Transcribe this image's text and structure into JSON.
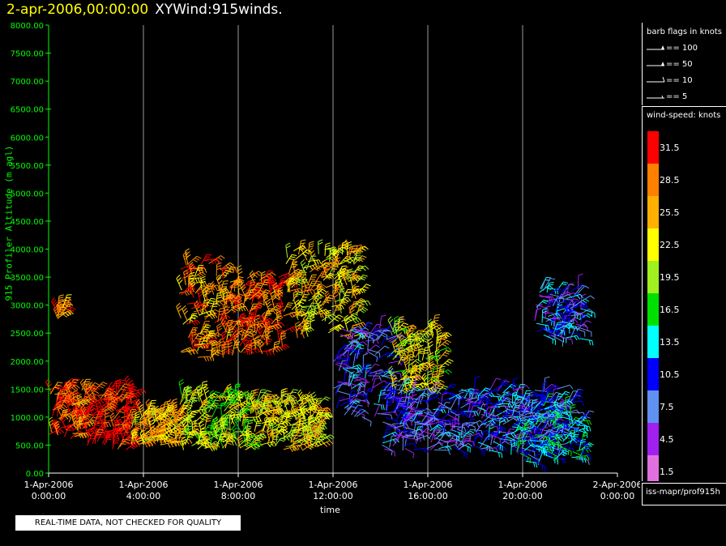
{
  "header": {
    "date": "2-apr-2006,00:00:00",
    "name": "XYWind:915winds."
  },
  "notice": "REAL-TIME DATA, NOT CHECKED FOR QUALITY",
  "legend_barbs": {
    "title": "barb flags in knots",
    "items": [
      {
        "label": "== 100",
        "kind": "flag"
      },
      {
        "label": "== 50",
        "kind": "flag"
      },
      {
        "label": "== 10",
        "kind": "full"
      },
      {
        "label": "== 5",
        "kind": "half"
      }
    ]
  },
  "legend_speed": {
    "title": "wind-speed: knots",
    "colors": [
      "#ff0000",
      "#ff8000",
      "#ffb000",
      "#ffff00",
      "#a0f020",
      "#00e000",
      "#00ffff",
      "#0000ff",
      "#6090f0",
      "#a020f0",
      "#e070e0"
    ],
    "labels": [
      "31.5",
      "28.5",
      "25.5",
      "22.5",
      "19.5",
      "16.5",
      "13.5",
      "10.5",
      "7.5",
      "4.5",
      "1.5"
    ]
  },
  "source": "iss-mapr/prof915h",
  "chart_data": {
    "type": "scatter",
    "title": "XYWind:915winds.",
    "xlabel": "time",
    "ylabel": "915 Profiler Altitude (m agl)",
    "xlim": [
      "2006-04-01T00:00",
      "2006-04-02T00:00"
    ],
    "ylim": [
      0,
      8000
    ],
    "yticks": [
      "0.00",
      "500.00",
      "1000.00",
      "1500.00",
      "2000.00",
      "2500.00",
      "3000.00",
      "3500.00",
      "4000.00",
      "4500.00",
      "5000.00",
      "5500.00",
      "6000.00",
      "6500.00",
      "7000.00",
      "7500.00",
      "8000.00"
    ],
    "xticks": [
      {
        "date": "1-Apr-2006",
        "time": "0:00:00"
      },
      {
        "date": "1-Apr-2006",
        "time": "4:00:00"
      },
      {
        "date": "1-Apr-2006",
        "time": "8:00:00"
      },
      {
        "date": "1-Apr-2006",
        "time": "12:00:00"
      },
      {
        "date": "1-Apr-2006",
        "time": "16:00:00"
      },
      {
        "date": "1-Apr-2006",
        "time": "20:00:00"
      },
      {
        "date": "2-Apr-2006",
        "time": "0:00:00"
      }
    ],
    "grid": "vertical",
    "clusters": [
      {
        "hours": [
          0.0,
          1.5
        ],
        "alt": [
          600,
          1500
        ],
        "speed": 29
      },
      {
        "hours": [
          1.5,
          3.5
        ],
        "alt": [
          400,
          1500
        ],
        "speed": 32
      },
      {
        "hours": [
          3.5,
          5.5
        ],
        "alt": [
          500,
          1100
        ],
        "speed": 25
      },
      {
        "hours": [
          5.5,
          8.5
        ],
        "alt": [
          400,
          1400
        ],
        "speed": 20
      },
      {
        "hours": [
          8.5,
          11.5
        ],
        "alt": [
          400,
          1300
        ],
        "speed": 23
      },
      {
        "hours": [
          5.5,
          7.5
        ],
        "alt": [
          2000,
          3800
        ],
        "speed": 27
      },
      {
        "hours": [
          7.5,
          10.0
        ],
        "alt": [
          2100,
          3500
        ],
        "speed": 29
      },
      {
        "hours": [
          10.0,
          13.0
        ],
        "alt": [
          2400,
          4000
        ],
        "speed": 24
      },
      {
        "hours": [
          12.0,
          14.5
        ],
        "alt": [
          1000,
          2600
        ],
        "speed": 8
      },
      {
        "hours": [
          14.5,
          16.5
        ],
        "alt": [
          1400,
          2600
        ],
        "speed": 22
      },
      {
        "hours": [
          14.0,
          18.0
        ],
        "alt": [
          400,
          1500
        ],
        "speed": 8
      },
      {
        "hours": [
          18.0,
          21.5
        ],
        "alt": [
          400,
          1500
        ],
        "speed": 9
      },
      {
        "hours": [
          19.5,
          22.5
        ],
        "alt": [
          200,
          1300
        ],
        "speed": 12
      },
      {
        "hours": [
          20.5,
          22.5
        ],
        "alt": [
          2400,
          3300
        ],
        "speed": 9
      },
      {
        "hours": [
          0.3,
          0.6
        ],
        "alt": [
          2700,
          3000
        ],
        "speed": 28
      }
    ]
  }
}
